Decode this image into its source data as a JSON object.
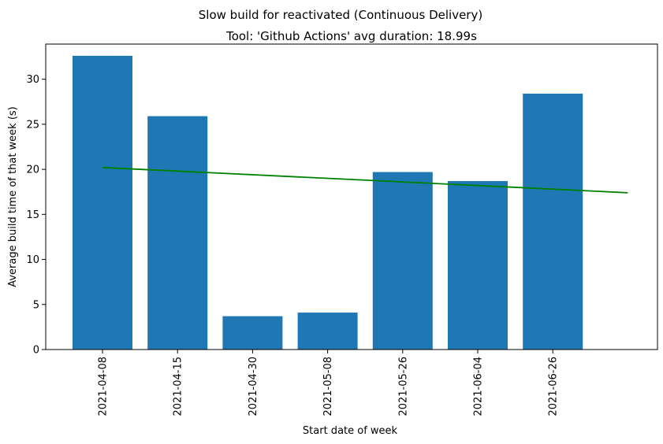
{
  "chart_data": {
    "type": "bar",
    "suptitle": "Slow build for reactivated (Continuous Delivery)",
    "title": "Tool: 'Github Actions' avg duration: 18.99s",
    "xlabel": "Start date of week",
    "ylabel": "Average build time of that week (s)",
    "categories": [
      "2021-04-08",
      "2021-04-15",
      "2021-04-30",
      "2021-05-08",
      "2021-05-26",
      "2021-06-04",
      "2021-06-26"
    ],
    "values": [
      32.6,
      25.9,
      3.7,
      4.1,
      19.7,
      18.7,
      28.4
    ],
    "ylim": [
      0,
      33.9
    ],
    "yticks": [
      0,
      5,
      10,
      15,
      20,
      25,
      30
    ],
    "bar_color": "#1f77b4",
    "trendline": {
      "color": "#008000",
      "x_index": [
        0,
        7
      ],
      "y": [
        20.2,
        17.4
      ]
    },
    "grid": false,
    "legend": "none"
  }
}
